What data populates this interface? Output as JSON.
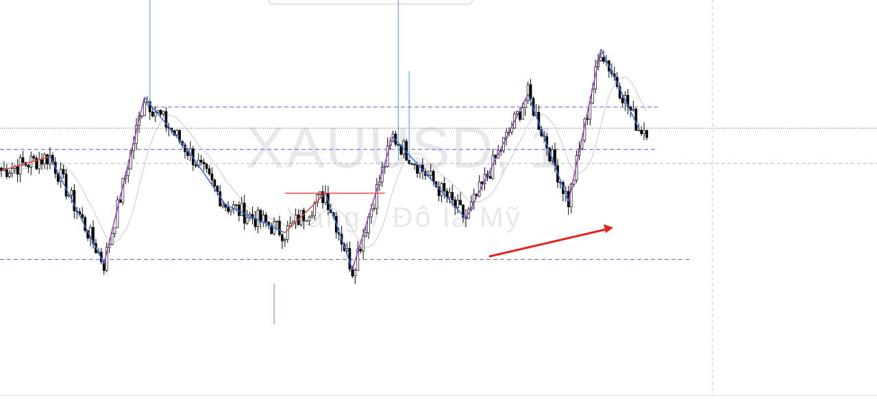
{
  "chart_data": {
    "type": "candlestick",
    "symbol": "XAUUSD, 1",
    "description": "Vàng / Đô la Mỹ",
    "price_range": [
      0,
      100
    ],
    "bars": 240,
    "zigzag_pivots": [
      {
        "bar": 0,
        "y": 57
      },
      {
        "bar": 18,
        "y": 62
      },
      {
        "bar": 38,
        "y": 24
      },
      {
        "bar": 53,
        "y": 83
      },
      {
        "bar": 70,
        "y": 63
      },
      {
        "bar": 83,
        "y": 45
      },
      {
        "bar": 105,
        "y": 35
      },
      {
        "bar": 120,
        "y": 49
      },
      {
        "bar": 130,
        "y": 22
      },
      {
        "bar": 145,
        "y": 69
      },
      {
        "bar": 172,
        "y": 40
      },
      {
        "bar": 195,
        "y": 84
      },
      {
        "bar": 210,
        "y": 46
      },
      {
        "bar": 222,
        "y": 100
      },
      {
        "bar": 236,
        "y": 72
      }
    ],
    "horizontal_levels": [
      {
        "y": 79.5,
        "style": "dashed",
        "color": "#5b5bd6"
      },
      {
        "y": 64.5,
        "style": "dashed",
        "color": "#5b5bd6"
      },
      {
        "y": 25.5,
        "style": "dashed",
        "color": "#5b5bd6"
      },
      {
        "y": 59.5,
        "style": "dashed",
        "color": "#b0b0b8"
      },
      {
        "y": 72.0,
        "style": "dotted",
        "color": "#555555"
      }
    ],
    "annotations": [
      {
        "type": "trend-arrow",
        "color": "#e8211d",
        "from_bar": 178,
        "from_y": 40,
        "to_bar": 222,
        "to_y": 48
      }
    ],
    "colors": {
      "candle_up": "#ffffff",
      "candle_down": "#000000",
      "wick": "#000000",
      "zigzag_up": "#e84848",
      "zigzag_strong": "#9b3fc9",
      "zigzag_down": "#3b6fe0",
      "vertical_marker": "#4a8ee0",
      "moving_average": "#c8c8c8",
      "level_line": "#5b5bd6",
      "grid": "#c9c9cf"
    }
  }
}
